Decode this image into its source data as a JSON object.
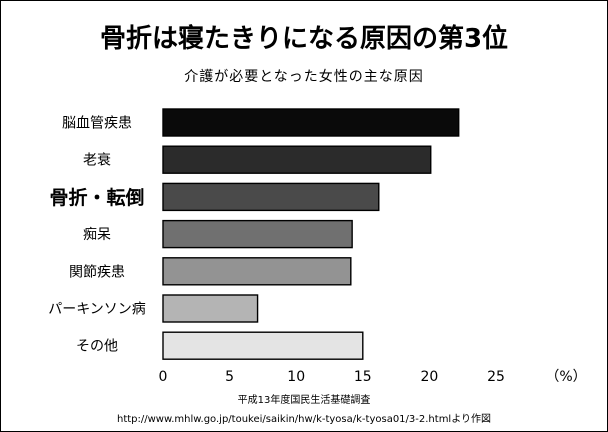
{
  "title": "骨折は寝たきりになる原因の第3位",
  "subtitle": "介護が必要となった女性の主な原因",
  "source_line1": "平成13年度国民生活基礎調査",
  "source_line2": "http://www.mhlw.go.jp/toukei/saikin/hw/k-tyosa/k-tyosa01/3-2.htmlより作図",
  "chart_data": {
    "type": "bar",
    "orientation": "horizontal",
    "title": "介護が必要となった女性の主な原因",
    "unit_label": "（%）",
    "categories": [
      "脳血管疾患",
      "老衰",
      "骨折・転倒",
      "痴呆",
      "関節疾患",
      "パーキンソン病",
      "その他"
    ],
    "values": [
      22.2,
      20.1,
      16.2,
      14.2,
      14.1,
      7.1,
      15.0
    ],
    "emphasized_category": "骨折・転倒",
    "bar_colors": [
      "#0a0a0a",
      "#2b2b2b",
      "#4a4a4a",
      "#707070",
      "#939393",
      "#b4b4b4",
      "#e4e4e4"
    ],
    "xlim": [
      0,
      25
    ],
    "x_ticks": [
      0,
      5,
      10,
      15,
      20,
      25
    ],
    "grid": false
  }
}
